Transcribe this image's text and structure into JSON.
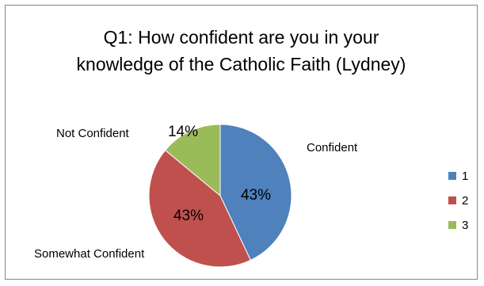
{
  "chart_data": {
    "type": "pie",
    "title_lines": [
      "Q1: How confident are you in your",
      "knowledge of the Catholic Faith (Lydney)"
    ],
    "slices": [
      {
        "legend": "1",
        "category": "Confident",
        "value": 43,
        "label": "43%",
        "color": "#4F81BD"
      },
      {
        "legend": "2",
        "category": "Somewhat Confident",
        "value": 43,
        "label": "43%",
        "color": "#C0504D"
      },
      {
        "legend": "3",
        "category": "Not Confident",
        "value": 14,
        "label": "14%",
        "color": "#9BBB59"
      }
    ],
    "legend_placement": "right",
    "grid": false
  }
}
